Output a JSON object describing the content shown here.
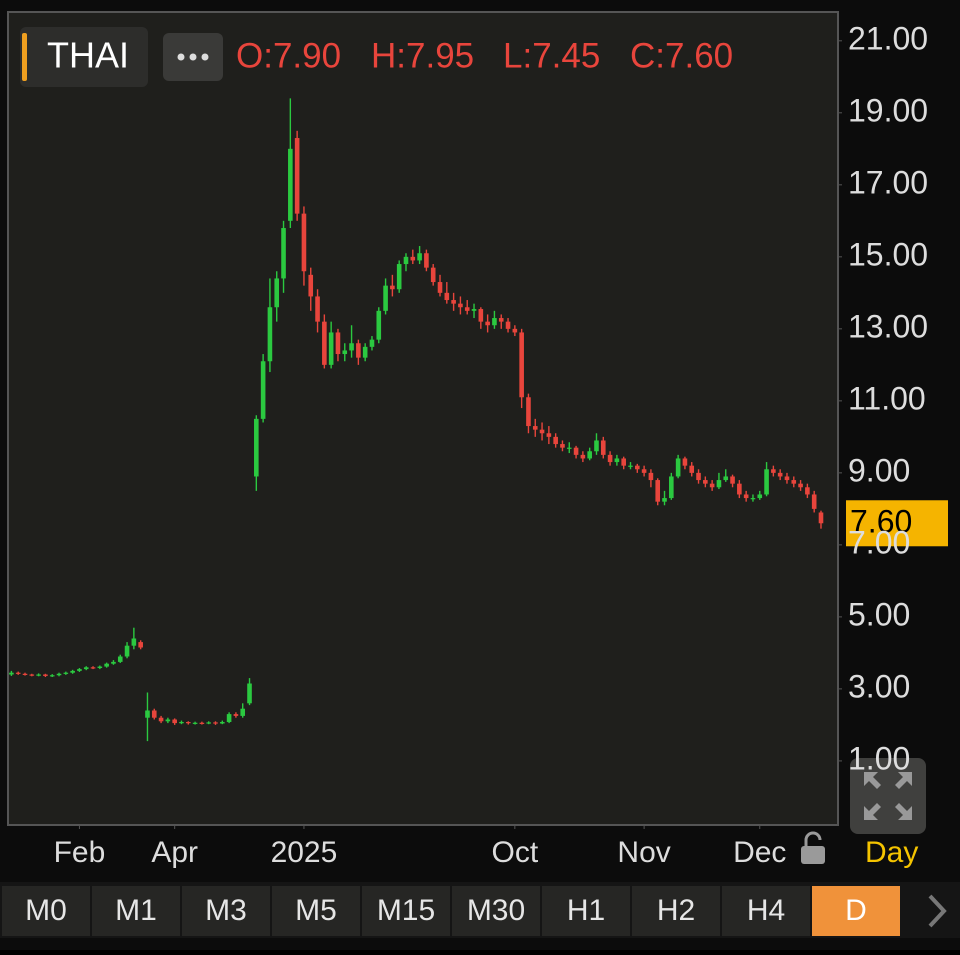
{
  "chart_data": {
    "type": "candlestick",
    "symbol": "THAI",
    "ohlc_labels": [
      "O:7.90",
      "H:7.95",
      "L:7.45",
      "C:7.60"
    ],
    "last_price": {
      "value": 7.6,
      "label": "7.60"
    },
    "up_color": "#2bc940",
    "down_color": "#e8453c",
    "open": [
      3.4,
      3.45,
      3.42,
      3.4,
      3.38,
      3.4,
      3.36,
      3.38,
      3.42,
      3.45,
      3.5,
      3.55,
      3.6,
      3.58,
      3.62,
      3.7,
      3.75,
      3.9,
      4.2,
      4.3,
      2.2,
      2.4,
      2.2,
      2.1,
      2.15,
      2.05,
      2.08,
      2.05,
      2.06,
      2.05,
      2.07,
      2.04,
      2.08,
      2.3,
      2.25,
      2.6,
      8.9,
      10.5,
      12.1,
      13.6,
      14.4,
      16.0,
      18.3,
      16.2,
      14.5,
      13.9,
      13.2,
      12.0,
      12.9,
      12.3,
      12.4,
      12.6,
      12.2,
      12.5,
      12.7,
      13.5,
      14.2,
      14.1,
      14.8,
      15.0,
      14.9,
      15.1,
      14.7,
      14.3,
      14.0,
      13.8,
      13.7,
      13.6,
      13.5,
      13.55,
      13.2,
      13.1,
      13.3,
      13.2,
      13.0,
      12.9,
      11.1,
      10.3,
      10.2,
      10.1,
      10.0,
      9.8,
      9.7,
      9.7,
      9.5,
      9.4,
      9.6,
      9.9,
      9.5,
      9.3,
      9.4,
      9.2,
      9.2,
      9.1,
      9.0,
      8.8,
      8.2,
      8.3,
      8.9,
      9.4,
      9.2,
      9.0,
      8.8,
      8.7,
      8.6,
      8.8,
      8.9,
      8.7,
      8.4,
      8.3,
      8.3,
      8.4,
      9.1,
      9.0,
      8.9,
      8.8,
      8.7,
      8.6,
      8.4,
      7.9
    ],
    "high": [
      3.5,
      3.48,
      3.45,
      3.42,
      3.43,
      3.42,
      3.41,
      3.45,
      3.48,
      3.53,
      3.58,
      3.63,
      3.63,
      3.65,
      3.73,
      3.8,
      3.95,
      4.3,
      4.7,
      4.35,
      2.9,
      2.45,
      2.25,
      2.2,
      2.18,
      2.12,
      2.1,
      2.09,
      2.09,
      2.1,
      2.1,
      2.12,
      2.35,
      2.35,
      2.6,
      3.3,
      10.6,
      12.3,
      14.4,
      14.6,
      16.0,
      19.4,
      18.5,
      16.4,
      14.7,
      14.1,
      13.4,
      13.2,
      13.0,
      12.6,
      13.1,
      12.7,
      12.6,
      12.8,
      13.6,
      14.4,
      14.5,
      14.9,
      15.1,
      15.2,
      15.3,
      15.2,
      14.8,
      14.5,
      14.3,
      14.0,
      13.9,
      13.8,
      13.7,
      13.6,
      13.4,
      13.5,
      13.4,
      13.3,
      13.1,
      13.0,
      11.2,
      10.5,
      10.4,
      10.3,
      10.1,
      9.9,
      9.85,
      9.75,
      9.6,
      9.7,
      10.1,
      10.0,
      9.6,
      9.5,
      9.45,
      9.3,
      9.25,
      9.2,
      9.1,
      8.85,
      8.5,
      9.0,
      9.5,
      9.45,
      9.3,
      9.1,
      8.9,
      8.8,
      9.0,
      9.1,
      8.95,
      8.8,
      8.5,
      8.4,
      8.5,
      9.3,
      9.2,
      9.1,
      9.0,
      8.9,
      8.8,
      8.7,
      8.5,
      7.95
    ],
    "low": [
      3.36,
      3.39,
      3.37,
      3.35,
      3.35,
      3.33,
      3.33,
      3.35,
      3.39,
      3.42,
      3.47,
      3.52,
      3.55,
      3.55,
      3.59,
      3.67,
      3.72,
      3.85,
      4.1,
      4.1,
      1.55,
      2.15,
      2.05,
      2.05,
      2.0,
      2.02,
      2.01,
      2.01,
      2.01,
      2.02,
      2.0,
      2.02,
      2.05,
      2.2,
      2.2,
      2.55,
      8.5,
      10.4,
      11.8,
      13.2,
      14.0,
      15.8,
      16.0,
      14.2,
      13.5,
      12.9,
      11.9,
      11.9,
      12.1,
      12.1,
      12.2,
      12.0,
      12.1,
      12.4,
      12.6,
      13.4,
      13.9,
      14.0,
      14.6,
      14.8,
      14.8,
      14.6,
      14.2,
      13.9,
      13.7,
      13.5,
      13.4,
      13.4,
      13.3,
      13.0,
      12.9,
      13.0,
      13.0,
      12.9,
      12.8,
      10.8,
      10.1,
      10.0,
      9.9,
      9.8,
      9.7,
      9.6,
      9.55,
      9.4,
      9.3,
      9.35,
      9.5,
      9.4,
      9.2,
      9.2,
      9.1,
      9.1,
      9.0,
      8.9,
      8.6,
      8.1,
      8.1,
      8.25,
      8.85,
      9.1,
      8.9,
      8.7,
      8.6,
      8.5,
      8.55,
      8.75,
      8.6,
      8.3,
      8.2,
      8.2,
      8.25,
      8.35,
      8.9,
      8.8,
      8.7,
      8.6,
      8.5,
      8.3,
      7.9,
      7.45
    ],
    "close": [
      3.45,
      3.42,
      3.4,
      3.38,
      3.4,
      3.36,
      3.38,
      3.42,
      3.45,
      3.5,
      3.55,
      3.6,
      3.58,
      3.62,
      3.7,
      3.75,
      3.9,
      4.2,
      4.4,
      4.15,
      2.4,
      2.2,
      2.1,
      2.15,
      2.05,
      2.08,
      2.05,
      2.06,
      2.05,
      2.07,
      2.04,
      2.08,
      2.3,
      2.25,
      2.45,
      3.15,
      10.5,
      12.1,
      13.6,
      14.4,
      15.8,
      18.0,
      16.2,
      14.6,
      13.9,
      13.2,
      12.0,
      12.9,
      12.3,
      12.4,
      12.6,
      12.2,
      12.5,
      12.7,
      13.5,
      14.2,
      14.1,
      14.8,
      15.0,
      14.9,
      15.1,
      14.7,
      14.3,
      14.0,
      13.8,
      13.7,
      13.6,
      13.5,
      13.55,
      13.2,
      13.1,
      13.3,
      13.2,
      13.0,
      12.9,
      11.1,
      10.3,
      10.2,
      10.1,
      10.0,
      9.8,
      9.7,
      9.7,
      9.5,
      9.4,
      9.6,
      9.9,
      9.5,
      9.3,
      9.4,
      9.2,
      9.2,
      9.1,
      9.0,
      8.8,
      8.2,
      8.3,
      8.9,
      9.4,
      9.2,
      9.0,
      8.8,
      8.7,
      8.6,
      8.8,
      8.9,
      8.7,
      8.4,
      8.3,
      8.3,
      8.4,
      9.1,
      9.0,
      8.9,
      8.8,
      8.7,
      8.6,
      8.4,
      8.0,
      7.6
    ],
    "xlim": [
      -0.5,
      121.5
    ],
    "xticks": [
      {
        "value": 10,
        "label": "Feb"
      },
      {
        "value": 24,
        "label": "Apr"
      },
      {
        "value": 43,
        "label": "2025"
      },
      {
        "value": 74,
        "label": "Oct"
      },
      {
        "value": 93,
        "label": "Nov"
      },
      {
        "value": 110,
        "label": "Dec"
      }
    ],
    "ylim": [
      -0.78,
      21.8
    ],
    "yticks": [
      {
        "value": 1,
        "label": "1.00"
      },
      {
        "value": 3,
        "label": "3.00"
      },
      {
        "value": 5,
        "label": "5.00"
      },
      {
        "value": 7,
        "label": "7.00"
      },
      {
        "value": 9,
        "label": "9.00"
      },
      {
        "value": 11,
        "label": "11.00"
      },
      {
        "value": 13,
        "label": "13.00"
      },
      {
        "value": 15,
        "label": "15.00"
      },
      {
        "value": 17,
        "label": "17.00"
      },
      {
        "value": 19,
        "label": "19.00"
      },
      {
        "value": 21,
        "label": "21.00"
      }
    ],
    "period_label": "Day",
    "timeframes": [
      "M0",
      "M1",
      "M3",
      "M5",
      "M15",
      "M30",
      "H1",
      "H2",
      "H4",
      "D"
    ],
    "active_timeframe": 9
  }
}
